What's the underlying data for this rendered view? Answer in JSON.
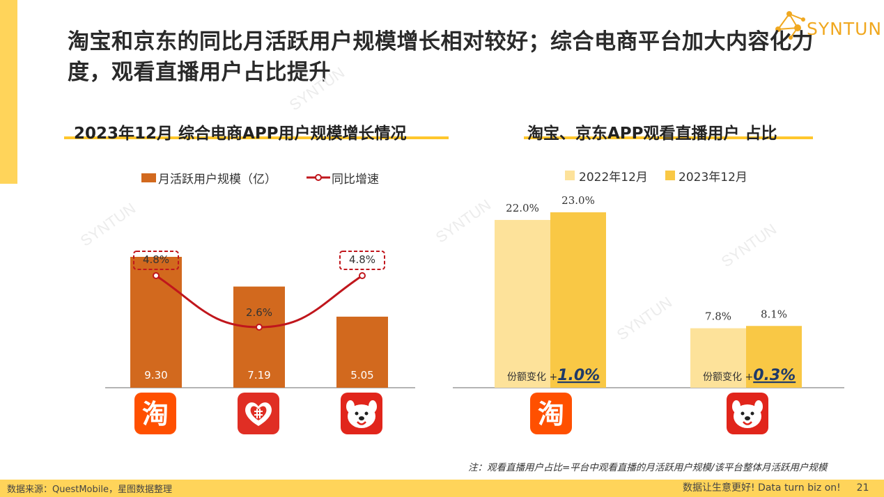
{
  "page": {
    "title": "淘宝和京东的同比月活跃用户规模增长相对较好；综合电商平台加大内容化力度，观看直播用户占比提升",
    "brand": "SYNTUN",
    "watermark": "SYNTUN",
    "note": "注：观看直播用户占比=平台中观看直播的月活跃用户规模/该平台整体月活跃用户规模",
    "footer_source": "数据来源：QuestMobile，星图数据整理",
    "footer_slogan": "数据让生意更好! Data turn biz on!",
    "page_number": "21"
  },
  "colors": {
    "bar_orange": "#D2691E",
    "line_red": "#C0161C",
    "bar_light_yellow": "#FDE29A",
    "bar_yellow": "#F9C845",
    "accent_yellow": "#FFD45A",
    "taobao_orange": "#FF5000",
    "jd_red": "#E1251B",
    "pdd_red": "#E02E24"
  },
  "chart_data": [
    {
      "type": "bar",
      "title": "2023年12月 综合电商APP用户规模增长情况",
      "categories": [
        "淘宝",
        "拼多多",
        "京东"
      ],
      "category_icons": [
        "taobao-app-icon",
        "pinduoduo-app-icon",
        "jd-app-icon"
      ],
      "series": [
        {
          "name": "月活跃用户规模（亿）",
          "kind": "bar",
          "values": [
            9.3,
            7.19,
            5.05
          ],
          "labels": [
            "9.30",
            "7.19",
            "5.05"
          ]
        },
        {
          "name": "同比增速",
          "kind": "line",
          "values": [
            4.8,
            2.6,
            4.8
          ],
          "labels": [
            "4.8%",
            "2.6%",
            "4.8%"
          ],
          "highlighted": [
            true,
            false,
            true
          ]
        }
      ],
      "legend_position": "top"
    },
    {
      "type": "bar",
      "title": "淘宝、京东APP观看直播用户 占比",
      "categories": [
        "淘宝",
        "京东"
      ],
      "category_icons": [
        "taobao-app-icon",
        "jd-app-icon"
      ],
      "series": [
        {
          "name": "2022年12月",
          "values": [
            22.0,
            7.8
          ],
          "labels": [
            "22.0%",
            "7.8%"
          ]
        },
        {
          "name": "2023年12月",
          "values": [
            23.0,
            8.1
          ],
          "labels": [
            "23.0%",
            "8.1%"
          ]
        }
      ],
      "annotations": [
        {
          "prefix": "份额变化 +",
          "value": "1.0%"
        },
        {
          "prefix": "份额变化 +",
          "value": "0.3%"
        }
      ],
      "legend_position": "top"
    }
  ]
}
